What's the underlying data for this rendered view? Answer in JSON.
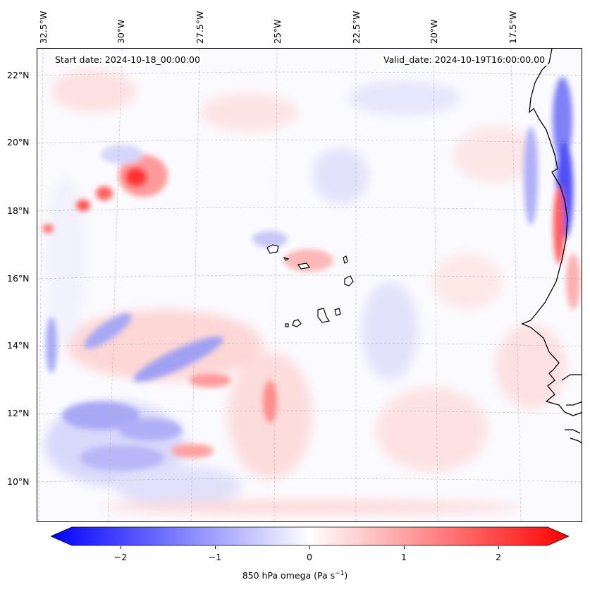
{
  "map": {
    "start_date": "Start date: 2024-10-18_00:00:00",
    "valid_date": "Valid_date: 2024-10-19T16:00:00.00",
    "lon_labels": [
      "32.5°W",
      "30°W",
      "27.5°W",
      "25°W",
      "22.5°W",
      "20°W",
      "17.5°W"
    ],
    "lat_labels": [
      "22°N",
      "20°N",
      "18°N",
      "16°N",
      "14°N",
      "12°N",
      "10°N"
    ],
    "field": "850 hPa omega",
    "colormap": "bwr",
    "extent": {
      "lon_min": -33.6,
      "lon_max": -15.4,
      "lat_min": 8.8,
      "lat_max": 22.8
    },
    "features": [
      {
        "name": "strong-ascent-band-west-africa-coast",
        "sign": "negative",
        "lon": -15.6,
        "lat": 18.5
      },
      {
        "name": "descent-max-nw",
        "sign": "positive",
        "lon": -29.8,
        "lat": 19.0
      },
      {
        "name": "descent-near-cape-verde",
        "sign": "positive",
        "lon": -23.5,
        "lat": 16.4
      },
      {
        "name": "ascent-band-sw",
        "sign": "negative",
        "lon": -31.0,
        "lat": 11.5
      }
    ],
    "islands": [
      "Cape Verde islands"
    ],
    "colors": {
      "min": "#0000ff",
      "mid": "#ffffff",
      "max": "#ff0000",
      "coast": "#000000",
      "grid": "#b0b0b0"
    }
  },
  "colorbar": {
    "ticks": [
      "−2",
      "−1",
      "0",
      "1",
      "2"
    ],
    "tick_values": [
      -2,
      -1,
      0,
      1,
      2
    ],
    "range": [
      -2.6,
      2.6
    ],
    "label_text": "850 hPa omega (Pa s",
    "label_exp": "−1",
    "label_close": ")"
  }
}
